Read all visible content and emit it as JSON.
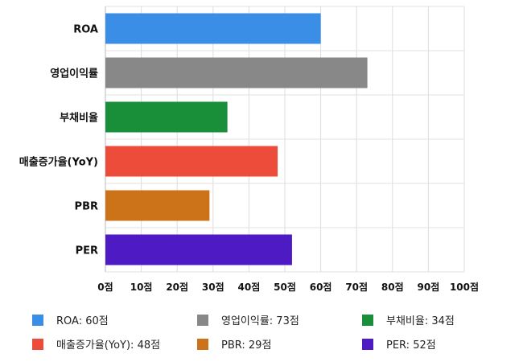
{
  "chart_data": {
    "type": "bar",
    "orientation": "horizontal",
    "categories": [
      "ROA",
      "영업이익률",
      "부채비율",
      "매출증가율(YoY)",
      "PBR",
      "PER"
    ],
    "values": [
      60,
      73,
      34,
      48,
      29,
      52
    ],
    "unit": "점",
    "xlim": [
      0,
      100
    ],
    "xticks": [
      0,
      10,
      20,
      30,
      40,
      50,
      60,
      70,
      80,
      90,
      100
    ],
    "tick_labels": [
      "0점",
      "10점",
      "20점",
      "30점",
      "40점",
      "50점",
      "60점",
      "70점",
      "80점",
      "90점",
      "100점"
    ],
    "colors": [
      "#3a8ee6",
      "#888888",
      "#1a8f3a",
      "#ee4c3a",
      "#cc7218",
      "#4e1ac4"
    ],
    "grid": true,
    "legend_position": "bottom"
  },
  "legend": [
    {
      "text": "ROA: 60점",
      "color": "#3a8ee6"
    },
    {
      "text": "영업이익률: 73점",
      "color": "#888888"
    },
    {
      "text": "부채비율: 34점",
      "color": "#1a8f3a"
    },
    {
      "text": "매출증가율(YoY): 48점",
      "color": "#ee4c3a"
    },
    {
      "text": "PBR: 29점",
      "color": "#cc7218"
    },
    {
      "text": "PER: 52점",
      "color": "#4e1ac4"
    }
  ]
}
